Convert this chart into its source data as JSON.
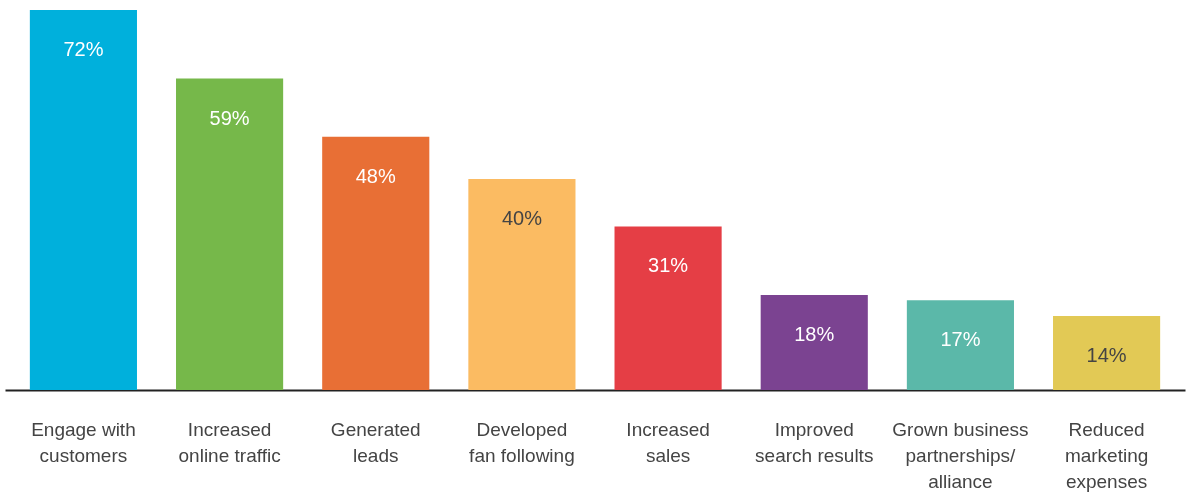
{
  "chart_data": {
    "type": "bar",
    "categories": [
      "Engage with\ncustomers",
      "Increased\nonline traffic",
      "Generated\nleads",
      "Developed\nfan following",
      "Increased\nsales",
      "Improved\nsearch results",
      "Grown business\npartnerships/\nalliance",
      "Reduced\nmarketing\nexpenses"
    ],
    "values": [
      72,
      59,
      48,
      40,
      31,
      18,
      17,
      14
    ],
    "colors": [
      "#00b0dc",
      "#76b84a",
      "#e86f35",
      "#fbbb62",
      "#e53e45",
      "#7b4391",
      "#5bb8a9",
      "#e2c955"
    ],
    "value_labels": [
      "72%",
      "59%",
      "48%",
      "40%",
      "31%",
      "18%",
      "17%",
      "14%"
    ],
    "grid": false
  }
}
